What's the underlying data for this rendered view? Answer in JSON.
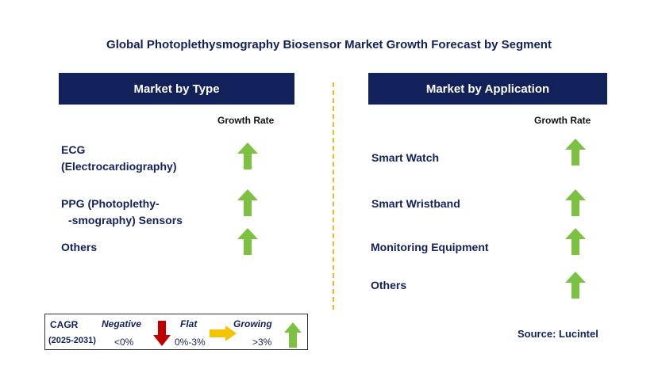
{
  "title": "Global Photoplethysmography Biosensor Market Growth Forecast by Segment",
  "left_panel": {
    "header": "Market by Type",
    "growth_rate_label": "Growth Rate",
    "items": [
      {
        "line1": "ECG",
        "line2": "(Electrocardiography)",
        "trend": "growing"
      },
      {
        "line1": "PPG (Photoplethy-",
        "line2": "-smography) Sensors",
        "trend": "growing"
      },
      {
        "line1": "Others",
        "line2": "",
        "trend": "growing"
      }
    ]
  },
  "right_panel": {
    "header": "Market by Application",
    "growth_rate_label": "Growth Rate",
    "items": [
      {
        "label": "Smart Watch",
        "trend": "growing"
      },
      {
        "label": "Smart Wristband",
        "trend": "growing"
      },
      {
        "label": "Monitoring Equipment",
        "trend": "growing"
      },
      {
        "label": "Others",
        "trend": "growing"
      }
    ]
  },
  "legend": {
    "cagr_label": "CAGR",
    "period": "(2025-2031)",
    "negative_label": "Negative",
    "negative_value": "<0%",
    "flat_label": "Flat",
    "flat_value": "0%-3%",
    "growing_label": "Growing",
    "growing_value": ">3%"
  },
  "source": "Source: Lucintel",
  "colors": {
    "header_bg": "#13215b",
    "growing": "#7cc142",
    "negative": "#c00000",
    "flat": "#f5c400",
    "divider": "#f2b720"
  }
}
